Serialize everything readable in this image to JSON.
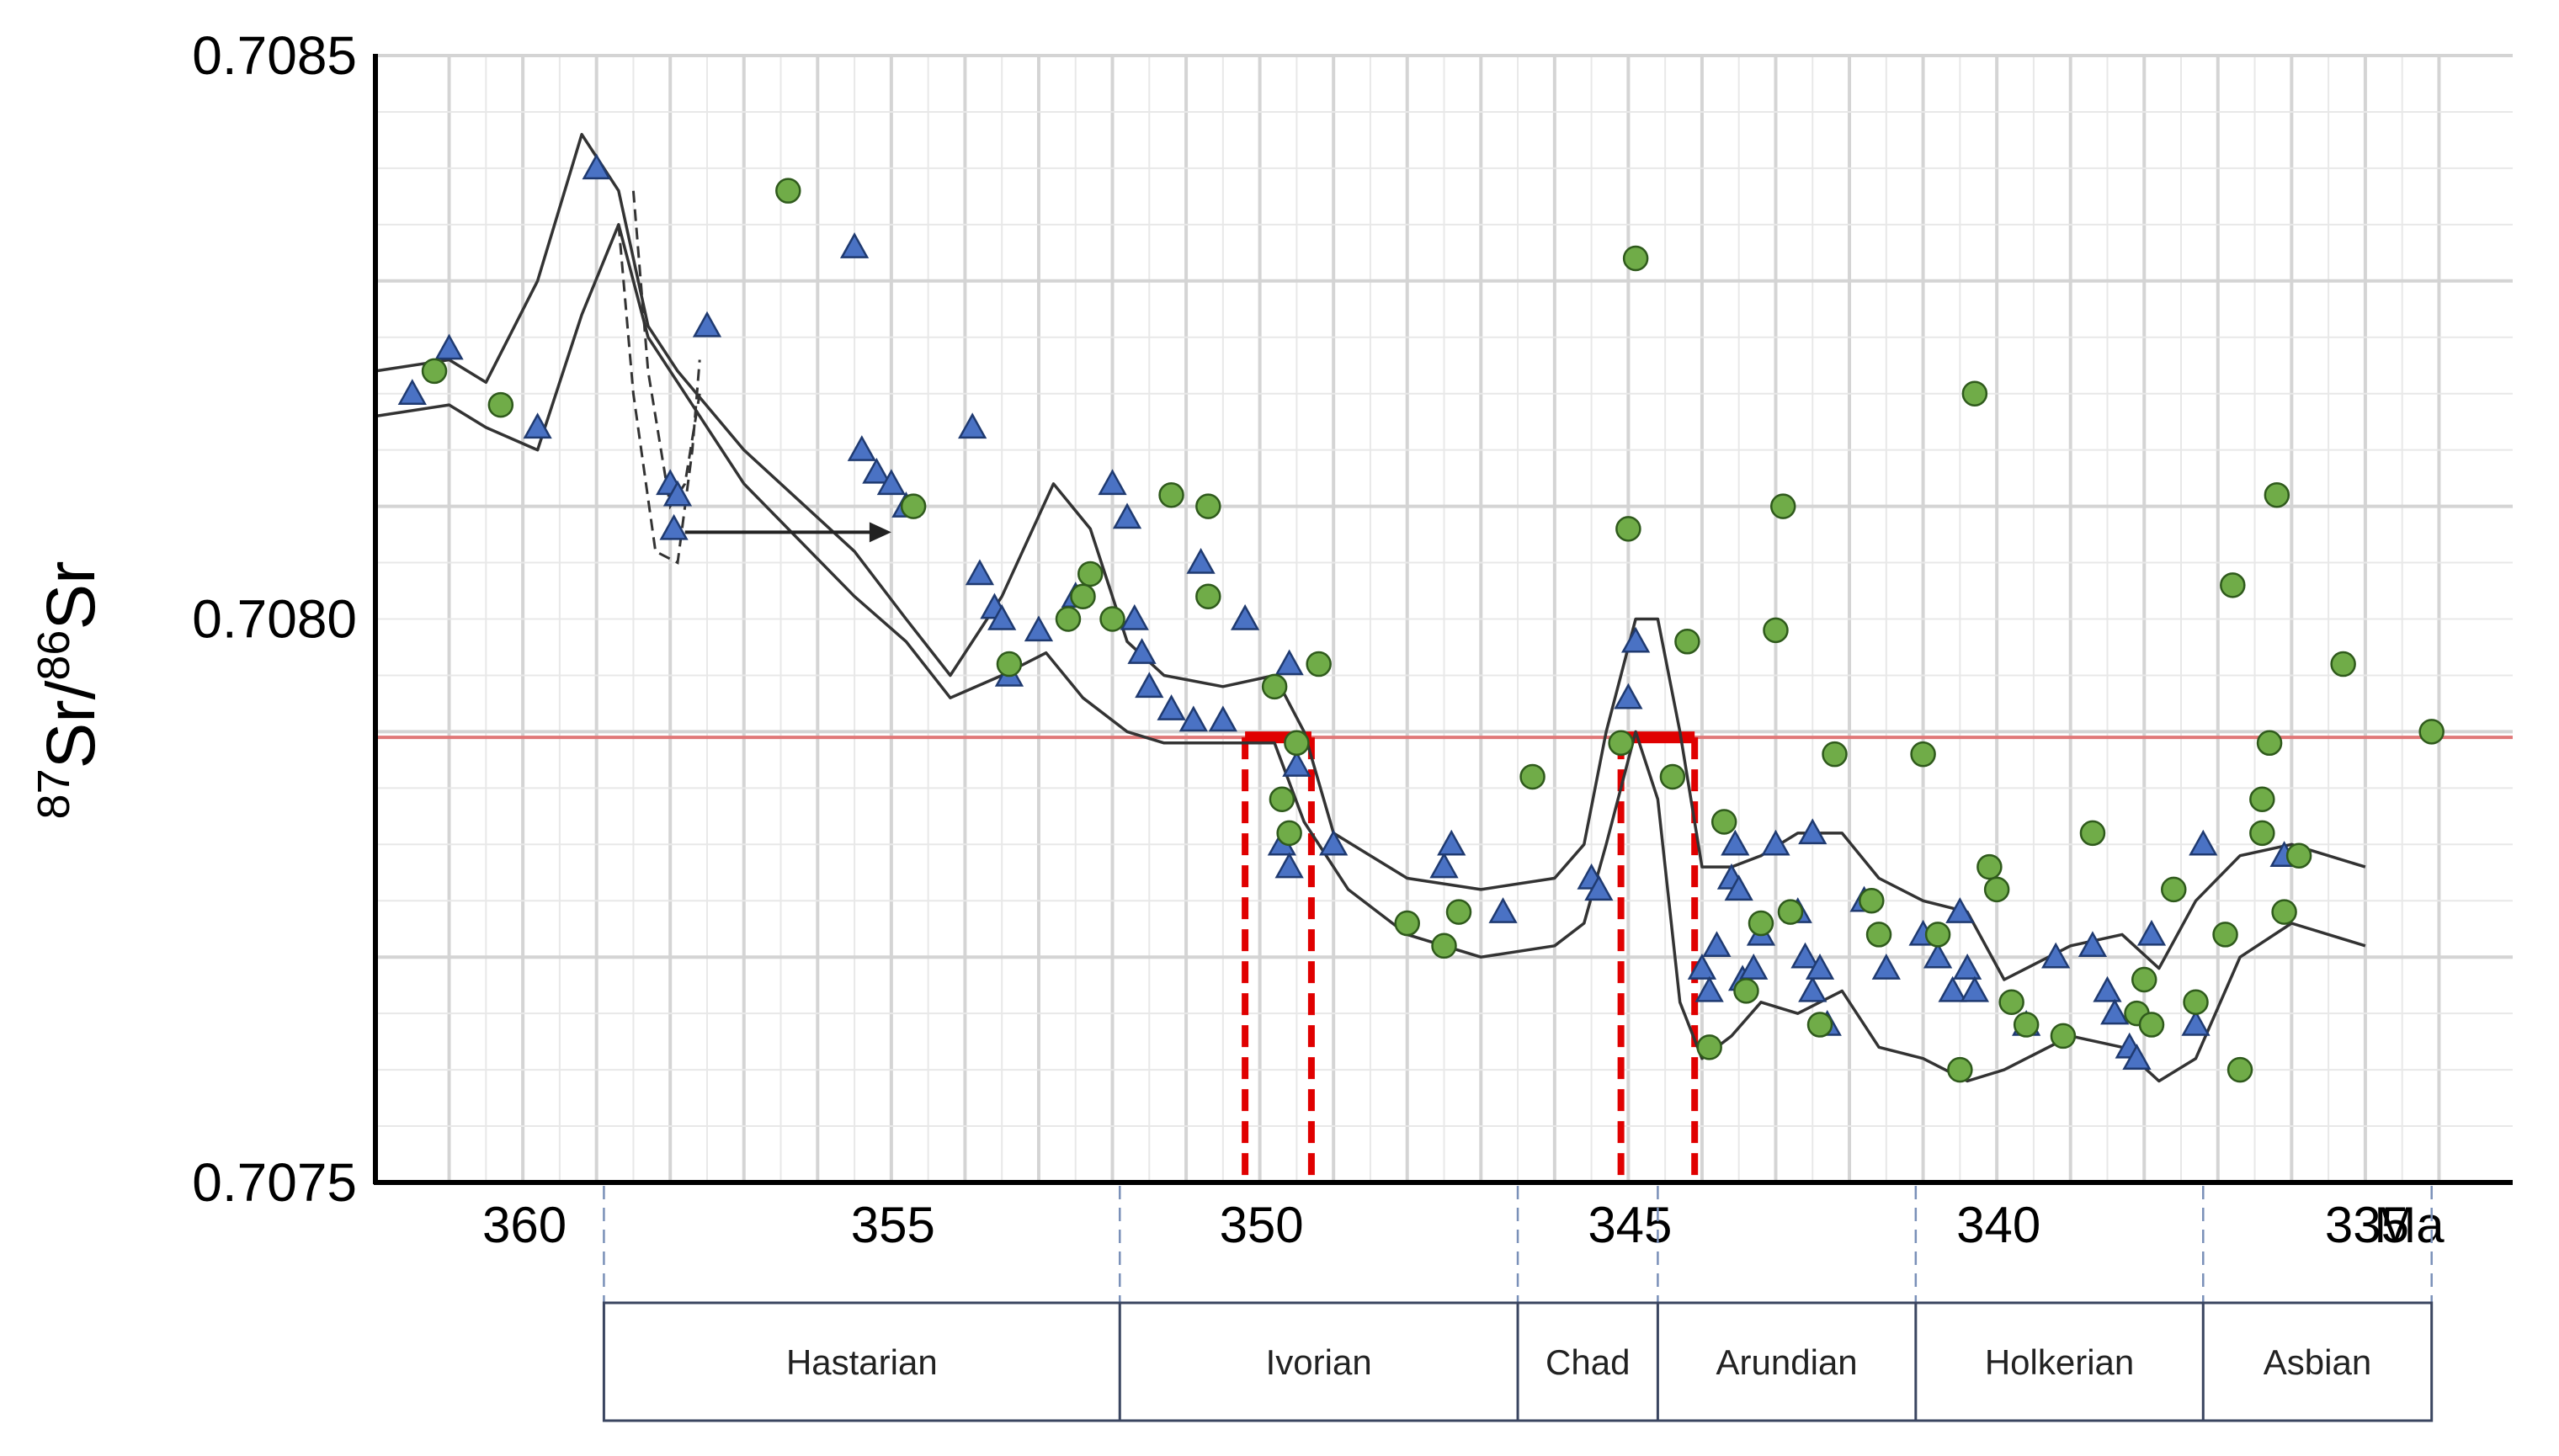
{
  "chart_data": {
    "type": "scatter",
    "title": "",
    "ylabel": {
      "sup1": "87",
      "main1": "Sr/",
      "sup2": "86",
      "main2": "Sr"
    },
    "xlabel": "Ma",
    "x_reversed": true,
    "xlim": [
      362,
      333
    ],
    "ylim": [
      0.7075,
      0.7085
    ],
    "x_ticks": [
      360,
      355,
      350,
      345,
      340,
      335
    ],
    "x_tick_labels": [
      "360",
      "355",
      "350",
      "345",
      "340",
      "335"
    ],
    "y_ticks": [
      0.7075,
      0.708,
      0.7085
    ],
    "y_tick_labels": [
      "0.7075",
      "0.7080",
      "0.7085"
    ],
    "grid": true,
    "reference_line": {
      "y": 0.707895,
      "color": "#e07878"
    },
    "highlight_color": "#e00000",
    "highlight_intervals": [
      {
        "x0": 350.2,
        "x1": 349.3,
        "y": 0.707895
      },
      {
        "x0": 345.1,
        "x1": 344.1,
        "y": 0.707895
      }
    ],
    "stages": [
      {
        "name": "Hastarian",
        "from": 358.9,
        "to": 351.9
      },
      {
        "name": "Ivorian",
        "from": 351.9,
        "to": 346.5
      },
      {
        "name": "Chad",
        "from": 346.5,
        "to": 344.6
      },
      {
        "name": "Arundian",
        "from": 344.6,
        "to": 341.1
      },
      {
        "name": "Holkerian",
        "from": 341.1,
        "to": 337.2
      },
      {
        "name": "Asbian",
        "from": 337.2,
        "to": 334.1
      }
    ],
    "envelope": {
      "upper": [
        [
          362,
          0.70822
        ],
        [
          361,
          0.70823
        ],
        [
          360.5,
          0.70821
        ],
        [
          359.8,
          0.7083
        ],
        [
          359.2,
          0.70843
        ],
        [
          358.7,
          0.70838
        ],
        [
          358.3,
          0.70826
        ],
        [
          357.9,
          0.70822
        ],
        [
          357,
          0.70815
        ],
        [
          355.5,
          0.70806
        ],
        [
          354.8,
          0.708
        ],
        [
          354.2,
          0.70795
        ],
        [
          353.5,
          0.70802
        ],
        [
          352.8,
          0.70812
        ],
        [
          352.3,
          0.70808
        ],
        [
          351.8,
          0.70798
        ],
        [
          351.3,
          0.70795
        ],
        [
          350.5,
          0.70794
        ],
        [
          349.8,
          0.70795
        ],
        [
          349.4,
          0.7079
        ],
        [
          349,
          0.70781
        ],
        [
          348,
          0.70777
        ],
        [
          347,
          0.70776
        ],
        [
          346,
          0.70777
        ],
        [
          345.6,
          0.7078
        ],
        [
          345.3,
          0.7079
        ],
        [
          344.9,
          0.708
        ],
        [
          344.6,
          0.708
        ],
        [
          344.3,
          0.7079
        ],
        [
          344.0,
          0.70778
        ],
        [
          343.6,
          0.70778
        ],
        [
          343.2,
          0.70779
        ],
        [
          342.7,
          0.70781
        ],
        [
          342.1,
          0.70781
        ],
        [
          341.6,
          0.70777
        ],
        [
          341.0,
          0.70775
        ],
        [
          340.4,
          0.70774
        ],
        [
          339.9,
          0.70768
        ],
        [
          339.0,
          0.70771
        ],
        [
          338.3,
          0.70772
        ],
        [
          337.8,
          0.70769
        ],
        [
          337.3,
          0.70775
        ],
        [
          336.7,
          0.70779
        ],
        [
          336.0,
          0.7078
        ],
        [
          335.0,
          0.70778
        ]
      ],
      "lower": [
        [
          362,
          0.70818
        ],
        [
          361,
          0.70819
        ],
        [
          360.5,
          0.70817
        ],
        [
          359.8,
          0.70815
        ],
        [
          359.2,
          0.70827
        ],
        [
          358.7,
          0.70835
        ],
        [
          358.3,
          0.70825
        ],
        [
          357.7,
          0.70819
        ],
        [
          357,
          0.70812
        ],
        [
          355.5,
          0.70802
        ],
        [
          354.8,
          0.70798
        ],
        [
          354.2,
          0.70793
        ],
        [
          353.5,
          0.70795
        ],
        [
          352.9,
          0.70797
        ],
        [
          352.4,
          0.70793
        ],
        [
          351.8,
          0.7079
        ],
        [
          351.3,
          0.70789
        ],
        [
          350.5,
          0.70789
        ],
        [
          349.8,
          0.70789
        ],
        [
          349.4,
          0.70782
        ],
        [
          348.8,
          0.70776
        ],
        [
          348,
          0.70772
        ],
        [
          347,
          0.7077
        ],
        [
          346,
          0.70771
        ],
        [
          345.6,
          0.70773
        ],
        [
          345.3,
          0.7078
        ],
        [
          344.9,
          0.7079
        ],
        [
          344.6,
          0.70784
        ],
        [
          344.3,
          0.70766
        ],
        [
          344.0,
          0.70761
        ],
        [
          343.6,
          0.70763
        ],
        [
          343.2,
          0.70766
        ],
        [
          342.7,
          0.70765
        ],
        [
          342.1,
          0.70767
        ],
        [
          341.6,
          0.70762
        ],
        [
          341.0,
          0.70761
        ],
        [
          340.4,
          0.70759
        ],
        [
          339.9,
          0.7076
        ],
        [
          339.0,
          0.70763
        ],
        [
          338.3,
          0.70762
        ],
        [
          337.8,
          0.70759
        ],
        [
          337.3,
          0.70761
        ],
        [
          336.7,
          0.7077
        ],
        [
          336.0,
          0.70773
        ],
        [
          335.0,
          0.70771
        ]
      ]
    },
    "dashed_excursion": [
      [
        [
          358.7,
          0.70835
        ],
        [
          358.5,
          0.7082
        ],
        [
          358.2,
          0.70806
        ],
        [
          357.9,
          0.70805
        ],
        [
          357.7,
          0.70815
        ],
        [
          357.6,
          0.70823
        ]
      ],
      [
        [
          358.5,
          0.70838
        ],
        [
          358.3,
          0.70822
        ],
        [
          358.0,
          0.7081
        ],
        [
          357.8,
          0.70812
        ],
        [
          357.6,
          0.7082
        ]
      ]
    ],
    "arrow": {
      "from": [
        357.8,
        0.708077
      ],
      "to": [
        355.0,
        0.708077
      ]
    },
    "series": [
      {
        "name": "triangles",
        "marker": "triangle",
        "color": "#4a72c4",
        "points": [
          [
            361.5,
            0.7082
          ],
          [
            361,
            0.70824
          ],
          [
            359.8,
            0.70817
          ],
          [
            359.0,
            0.7084
          ],
          [
            358.0,
            0.70812
          ],
          [
            357.9,
            0.70811
          ],
          [
            357.95,
            0.70808
          ],
          [
            357.5,
            0.70826
          ],
          [
            355.5,
            0.70833
          ],
          [
            355.4,
            0.70815
          ],
          [
            355.2,
            0.70813
          ],
          [
            355.0,
            0.70812
          ],
          [
            354.8,
            0.7081
          ],
          [
            353.9,
            0.70817
          ],
          [
            353.8,
            0.70804
          ],
          [
            353.6,
            0.70801
          ],
          [
            353.5,
            0.708
          ],
          [
            353.4,
            0.70795
          ],
          [
            353.0,
            0.70799
          ],
          [
            352.5,
            0.70802
          ],
          [
            352.0,
            0.70812
          ],
          [
            351.8,
            0.70809
          ],
          [
            351.7,
            0.708
          ],
          [
            351.6,
            0.70797
          ],
          [
            351.5,
            0.70794
          ],
          [
            351.2,
            0.70792
          ],
          [
            350.9,
            0.70791
          ],
          [
            350.8,
            0.70805
          ],
          [
            350.5,
            0.70791
          ],
          [
            350.2,
            0.708
          ],
          [
            349.6,
            0.70796
          ],
          [
            349.7,
            0.7078
          ],
          [
            349.6,
            0.70778
          ],
          [
            349.5,
            0.70787
          ],
          [
            349.0,
            0.7078
          ],
          [
            347.5,
            0.70778
          ],
          [
            347.4,
            0.7078
          ],
          [
            346.7,
            0.70774
          ],
          [
            345.5,
            0.70777
          ],
          [
            345.4,
            0.70776
          ],
          [
            345.0,
            0.70793
          ],
          [
            344.9,
            0.70798
          ],
          [
            344.0,
            0.70769
          ],
          [
            343.9,
            0.70767
          ],
          [
            343.8,
            0.70771
          ],
          [
            343.6,
            0.70777
          ],
          [
            343.55,
            0.7078
          ],
          [
            343.5,
            0.70776
          ],
          [
            343.45,
            0.70768
          ],
          [
            343.3,
            0.70769
          ],
          [
            343.2,
            0.70772
          ],
          [
            343.0,
            0.7078
          ],
          [
            342.7,
            0.70774
          ],
          [
            342.6,
            0.7077
          ],
          [
            342.5,
            0.70781
          ],
          [
            342.5,
            0.70767
          ],
          [
            342.4,
            0.70769
          ],
          [
            342.3,
            0.70764
          ],
          [
            341.8,
            0.70775
          ],
          [
            341.5,
            0.70769
          ],
          [
            341.0,
            0.70772
          ],
          [
            340.8,
            0.7077
          ],
          [
            340.6,
            0.70767
          ],
          [
            340.5,
            0.70774
          ],
          [
            340.4,
            0.70769
          ],
          [
            340.3,
            0.70767
          ],
          [
            339.6,
            0.70764
          ],
          [
            339.2,
            0.7077
          ],
          [
            338.7,
            0.70771
          ],
          [
            338.5,
            0.70767
          ],
          [
            338.4,
            0.70765
          ],
          [
            338.2,
            0.70762
          ],
          [
            338.1,
            0.70761
          ],
          [
            337.9,
            0.70772
          ],
          [
            337.3,
            0.70764
          ],
          [
            337.2,
            0.7078
          ],
          [
            336.1,
            0.70779
          ]
        ]
      },
      {
        "name": "circles",
        "marker": "circle",
        "color": "#70ac48",
        "points": [
          [
            361.2,
            0.70822
          ],
          [
            360.3,
            0.70819
          ],
          [
            356.4,
            0.70838
          ],
          [
            354.7,
            0.7081
          ],
          [
            353.4,
            0.70796
          ],
          [
            352.6,
            0.708
          ],
          [
            352.4,
            0.70802
          ],
          [
            352.3,
            0.70804
          ],
          [
            352.0,
            0.708
          ],
          [
            351.2,
            0.70811
          ],
          [
            350.7,
            0.7081
          ],
          [
            350.7,
            0.70802
          ],
          [
            349.8,
            0.70794
          ],
          [
            349.7,
            0.70784
          ],
          [
            349.6,
            0.70781
          ],
          [
            349.5,
            0.70789
          ],
          [
            349.2,
            0.70796
          ],
          [
            348.0,
            0.70773
          ],
          [
            347.5,
            0.70771
          ],
          [
            347.3,
            0.70774
          ],
          [
            346.3,
            0.70786
          ],
          [
            345.1,
            0.70789
          ],
          [
            345.0,
            0.70808
          ],
          [
            344.9,
            0.70832
          ],
          [
            344.4,
            0.70786
          ],
          [
            344.2,
            0.70798
          ],
          [
            343.9,
            0.70762
          ],
          [
            343.7,
            0.70782
          ],
          [
            343.4,
            0.70767
          ],
          [
            343.2,
            0.70773
          ],
          [
            343.0,
            0.70799
          ],
          [
            342.9,
            0.7081
          ],
          [
            342.8,
            0.70774
          ],
          [
            342.4,
            0.70764
          ],
          [
            342.2,
            0.70788
          ],
          [
            341.7,
            0.70775
          ],
          [
            341.6,
            0.70772
          ],
          [
            341.0,
            0.70788
          ],
          [
            340.8,
            0.70772
          ],
          [
            340.5,
            0.7076
          ],
          [
            340.3,
            0.7082
          ],
          [
            340.1,
            0.70778
          ],
          [
            340.0,
            0.70776
          ],
          [
            339.8,
            0.70766
          ],
          [
            339.6,
            0.70764
          ],
          [
            339.1,
            0.70763
          ],
          [
            338.7,
            0.70781
          ],
          [
            338.1,
            0.70765
          ],
          [
            338.0,
            0.70768
          ],
          [
            337.9,
            0.70764
          ],
          [
            337.6,
            0.70776
          ],
          [
            337.3,
            0.70766
          ],
          [
            336.9,
            0.70772
          ],
          [
            336.8,
            0.70803
          ],
          [
            336.7,
            0.7076
          ],
          [
            336.4,
            0.70781
          ],
          [
            336.4,
            0.70784
          ],
          [
            336.3,
            0.70789
          ],
          [
            336.2,
            0.70811
          ],
          [
            336.1,
            0.70774
          ],
          [
            335.9,
            0.70779
          ],
          [
            335.3,
            0.70796
          ],
          [
            334.1,
            0.7079
          ]
        ]
      }
    ]
  }
}
